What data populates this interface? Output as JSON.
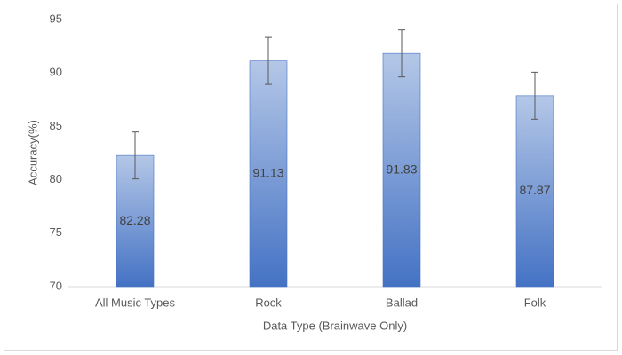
{
  "chart_data": {
    "type": "bar",
    "x_label": "Data Type (Brainwave Only)",
    "y_label": "Accuracy(%)",
    "categories": [
      "All Music Types",
      "Rock",
      "Ballad",
      "Folk"
    ],
    "values": [
      82.28,
      91.13,
      91.83,
      87.87
    ],
    "errors": [
      2.2,
      2.2,
      2.2,
      2.2
    ],
    "color": "#4472c4",
    "ylim": [
      70,
      95
    ],
    "yticks": [
      70,
      75,
      80,
      85,
      90,
      95
    ],
    "grid": false,
    "data_labels": true
  }
}
